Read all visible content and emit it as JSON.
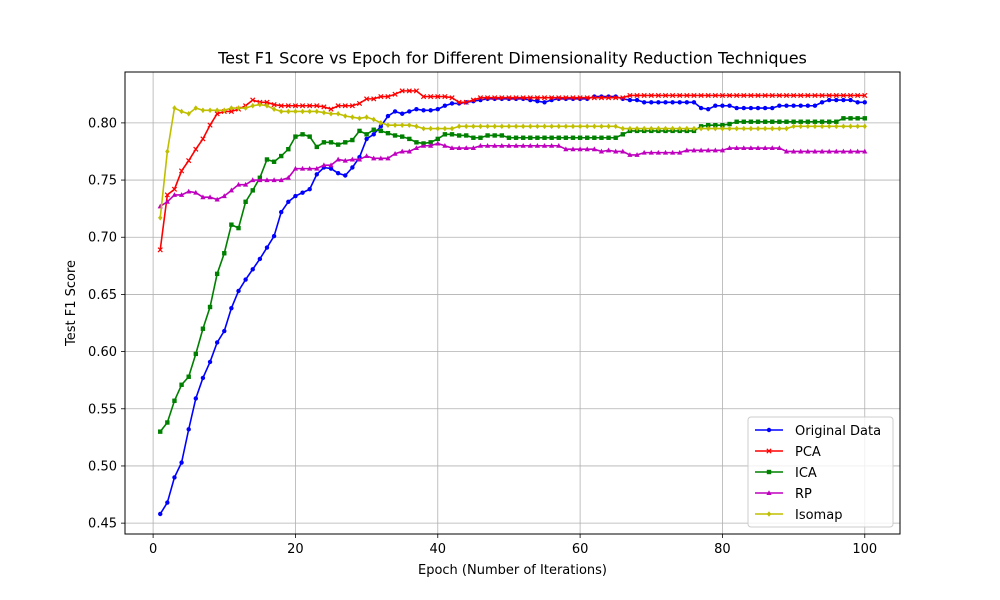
{
  "chart_data": {
    "type": "line",
    "title": "Test F1 Score vs Epoch for Different Dimensionality Reduction Techniques",
    "xlabel": "Epoch (Number of Iterations)",
    "ylabel": "Test F1 Score",
    "xlim": [
      -3.95,
      104.95
    ],
    "ylim": [
      0.4405,
      0.8445
    ],
    "xticks": [
      0,
      20,
      40,
      60,
      80,
      100
    ],
    "yticks": [
      0.45,
      0.5,
      0.55,
      0.6,
      0.65,
      0.7,
      0.75,
      0.8
    ],
    "ytick_labels": [
      "0.45",
      "0.50",
      "0.55",
      "0.60",
      "0.65",
      "0.70",
      "0.75",
      "0.80"
    ],
    "grid": true,
    "legend_position": "lower-right",
    "x_start": 1,
    "x_end": 100,
    "series": [
      {
        "name": "Original Data",
        "color": "#0000ff",
        "marker": "circle",
        "values": [
          0.458,
          0.468,
          0.49,
          0.503,
          0.532,
          0.559,
          0.577,
          0.591,
          0.608,
          0.618,
          0.638,
          0.653,
          0.663,
          0.672,
          0.681,
          0.691,
          0.701,
          0.722,
          0.731,
          0.736,
          0.739,
          0.742,
          0.755,
          0.761,
          0.76,
          0.756,
          0.754,
          0.761,
          0.77,
          0.786,
          0.79,
          0.797,
          0.806,
          0.81,
          0.808,
          0.81,
          0.812,
          0.811,
          0.811,
          0.812,
          0.815,
          0.817,
          0.817,
          0.818,
          0.819,
          0.82,
          0.821,
          0.821,
          0.821,
          0.821,
          0.821,
          0.821,
          0.82,
          0.819,
          0.818,
          0.82,
          0.821,
          0.821,
          0.821,
          0.821,
          0.821,
          0.823,
          0.823,
          0.823,
          0.823,
          0.821,
          0.82,
          0.82,
          0.818,
          0.818,
          0.818,
          0.818,
          0.818,
          0.818,
          0.818,
          0.818,
          0.813,
          0.812,
          0.815,
          0.815,
          0.815,
          0.813,
          0.813,
          0.813,
          0.813,
          0.813,
          0.813,
          0.815,
          0.815,
          0.815,
          0.815,
          0.815,
          0.815,
          0.818,
          0.82,
          0.82,
          0.82,
          0.82,
          0.818,
          0.818
        ]
      },
      {
        "name": "PCA",
        "color": "#ff0000",
        "marker": "x",
        "values": [
          0.689,
          0.737,
          0.742,
          0.758,
          0.767,
          0.777,
          0.786,
          0.798,
          0.808,
          0.81,
          0.81,
          0.812,
          0.815,
          0.82,
          0.818,
          0.818,
          0.816,
          0.815,
          0.815,
          0.815,
          0.815,
          0.815,
          0.815,
          0.814,
          0.812,
          0.815,
          0.815,
          0.815,
          0.817,
          0.821,
          0.821,
          0.823,
          0.823,
          0.825,
          0.828,
          0.828,
          0.828,
          0.823,
          0.823,
          0.823,
          0.823,
          0.822,
          0.818,
          0.818,
          0.82,
          0.822,
          0.822,
          0.822,
          0.822,
          0.822,
          0.822,
          0.822,
          0.822,
          0.822,
          0.822,
          0.822,
          0.822,
          0.822,
          0.822,
          0.822,
          0.822,
          0.822,
          0.822,
          0.822,
          0.822,
          0.822,
          0.824,
          0.824,
          0.824,
          0.824,
          0.824,
          0.824,
          0.824,
          0.824,
          0.824,
          0.824,
          0.824,
          0.824,
          0.824,
          0.824,
          0.824,
          0.824,
          0.824,
          0.824,
          0.824,
          0.824,
          0.824,
          0.824,
          0.824,
          0.824,
          0.824,
          0.824,
          0.824,
          0.824,
          0.824,
          0.824,
          0.824,
          0.824,
          0.824,
          0.824
        ]
      },
      {
        "name": "ICA",
        "color": "#008000",
        "marker": "square",
        "values": [
          0.53,
          0.538,
          0.557,
          0.571,
          0.578,
          0.598,
          0.62,
          0.639,
          0.668,
          0.686,
          0.711,
          0.708,
          0.731,
          0.741,
          0.752,
          0.768,
          0.766,
          0.771,
          0.777,
          0.788,
          0.79,
          0.788,
          0.779,
          0.783,
          0.783,
          0.781,
          0.783,
          0.785,
          0.793,
          0.79,
          0.794,
          0.793,
          0.791,
          0.789,
          0.788,
          0.786,
          0.783,
          0.782,
          0.783,
          0.786,
          0.79,
          0.79,
          0.789,
          0.789,
          0.787,
          0.787,
          0.789,
          0.789,
          0.789,
          0.787,
          0.787,
          0.787,
          0.787,
          0.787,
          0.787,
          0.787,
          0.787,
          0.787,
          0.787,
          0.787,
          0.787,
          0.787,
          0.787,
          0.787,
          0.787,
          0.79,
          0.793,
          0.793,
          0.793,
          0.793,
          0.793,
          0.793,
          0.793,
          0.793,
          0.793,
          0.793,
          0.797,
          0.798,
          0.798,
          0.798,
          0.799,
          0.801,
          0.801,
          0.801,
          0.801,
          0.801,
          0.801,
          0.801,
          0.801,
          0.801,
          0.801,
          0.801,
          0.801,
          0.801,
          0.801,
          0.801,
          0.804,
          0.804,
          0.804,
          0.804
        ]
      },
      {
        "name": "RP",
        "color": "#bf00bf",
        "marker": "triangle",
        "values": [
          0.727,
          0.731,
          0.737,
          0.737,
          0.74,
          0.739,
          0.735,
          0.735,
          0.733,
          0.736,
          0.741,
          0.746,
          0.746,
          0.75,
          0.75,
          0.75,
          0.75,
          0.75,
          0.752,
          0.76,
          0.76,
          0.76,
          0.76,
          0.763,
          0.763,
          0.768,
          0.767,
          0.768,
          0.768,
          0.771,
          0.769,
          0.769,
          0.769,
          0.773,
          0.775,
          0.775,
          0.778,
          0.78,
          0.78,
          0.782,
          0.78,
          0.778,
          0.778,
          0.778,
          0.778,
          0.78,
          0.78,
          0.78,
          0.78,
          0.78,
          0.78,
          0.78,
          0.78,
          0.78,
          0.78,
          0.78,
          0.78,
          0.777,
          0.777,
          0.777,
          0.777,
          0.777,
          0.775,
          0.776,
          0.775,
          0.775,
          0.772,
          0.772,
          0.774,
          0.774,
          0.774,
          0.774,
          0.774,
          0.774,
          0.776,
          0.776,
          0.776,
          0.776,
          0.776,
          0.776,
          0.778,
          0.778,
          0.778,
          0.778,
          0.778,
          0.778,
          0.778,
          0.778,
          0.775,
          0.775,
          0.775,
          0.775,
          0.775,
          0.775,
          0.775,
          0.775,
          0.775,
          0.775,
          0.775,
          0.775
        ]
      },
      {
        "name": "Isomap",
        "color": "#bfbf00",
        "marker": "diamond",
        "values": [
          0.717,
          0.775,
          0.813,
          0.81,
          0.808,
          0.813,
          0.811,
          0.811,
          0.811,
          0.811,
          0.813,
          0.813,
          0.813,
          0.815,
          0.816,
          0.815,
          0.812,
          0.81,
          0.81,
          0.81,
          0.81,
          0.81,
          0.81,
          0.809,
          0.808,
          0.808,
          0.806,
          0.805,
          0.804,
          0.805,
          0.803,
          0.8,
          0.798,
          0.798,
          0.798,
          0.798,
          0.797,
          0.795,
          0.795,
          0.795,
          0.795,
          0.795,
          0.797,
          0.797,
          0.797,
          0.797,
          0.797,
          0.797,
          0.797,
          0.797,
          0.797,
          0.797,
          0.797,
          0.797,
          0.797,
          0.797,
          0.797,
          0.797,
          0.797,
          0.797,
          0.797,
          0.797,
          0.797,
          0.797,
          0.797,
          0.795,
          0.795,
          0.795,
          0.795,
          0.795,
          0.795,
          0.795,
          0.795,
          0.795,
          0.795,
          0.795,
          0.795,
          0.795,
          0.795,
          0.795,
          0.795,
          0.795,
          0.795,
          0.795,
          0.795,
          0.795,
          0.795,
          0.795,
          0.795,
          0.797,
          0.797,
          0.797,
          0.797,
          0.797,
          0.797,
          0.797,
          0.797,
          0.797,
          0.797,
          0.797
        ]
      }
    ]
  }
}
